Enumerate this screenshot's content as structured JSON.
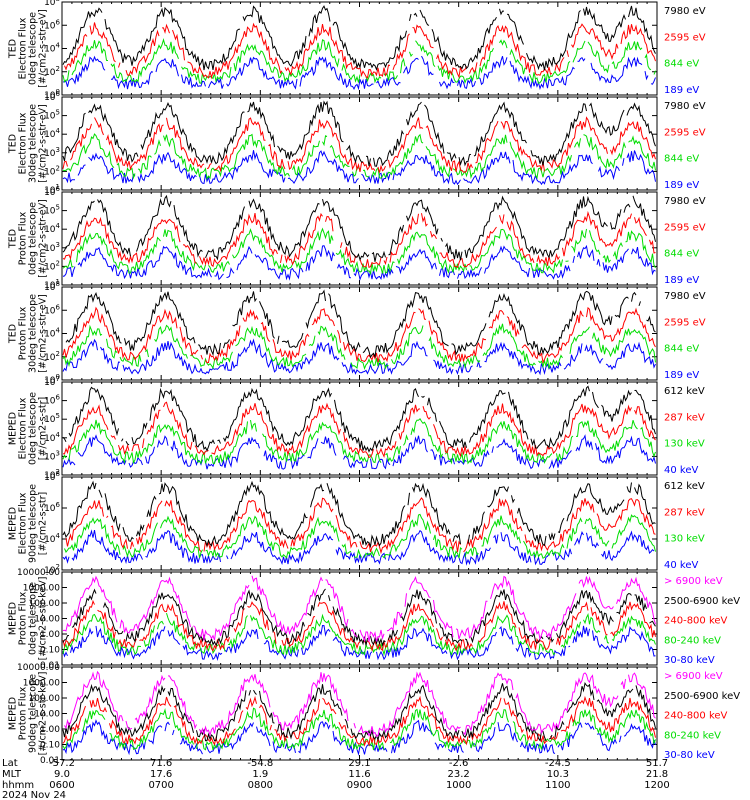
{
  "chart_data": [
    {
      "type": "line",
      "ylabel": [
        "TED",
        "Electron Flux",
        "0deg telescope",
        "[#/cm2-s-str-eV]"
      ],
      "yscale": "log",
      "yticks": [
        "10^0",
        "10^2",
        "10^4",
        "10^6",
        "10^8"
      ],
      "yrange_exp": [
        0,
        8
      ],
      "series": [
        {
          "name": "7980 eV",
          "color": "#000000"
        },
        {
          "name": "2595 eV",
          "color": "#ff0000"
        },
        {
          "name": "844 eV",
          "color": "#00dd00"
        },
        {
          "name": "189 eV",
          "color": "#0000ff"
        }
      ]
    },
    {
      "type": "line",
      "ylabel": [
        "TED",
        "Electron Flux",
        "30deg telescope",
        "[#/cm2-s-str-eV]"
      ],
      "yscale": "log",
      "yticks": [
        "10^1",
        "10^2",
        "10^3",
        "10^4",
        "10^5",
        "10^6"
      ],
      "yrange_exp": [
        1,
        6
      ],
      "series": [
        {
          "name": "7980 eV",
          "color": "#000000"
        },
        {
          "name": "2595 eV",
          "color": "#ff0000"
        },
        {
          "name": "844 eV",
          "color": "#00dd00"
        },
        {
          "name": "189 eV",
          "color": "#0000ff"
        }
      ]
    },
    {
      "type": "line",
      "ylabel": [
        "TED",
        "Proton Flux",
        "0deg telescope",
        "[#/cm2-s-str-eV]"
      ],
      "yscale": "log",
      "yticks": [
        "10^1",
        "10^2",
        "10^3",
        "10^4",
        "10^5",
        "10^6"
      ],
      "yrange_exp": [
        1,
        6
      ],
      "series": [
        {
          "name": "7980 eV",
          "color": "#000000"
        },
        {
          "name": "2595 eV",
          "color": "#ff0000"
        },
        {
          "name": "844 eV",
          "color": "#00dd00"
        },
        {
          "name": "189 eV",
          "color": "#0000ff"
        }
      ]
    },
    {
      "type": "line",
      "ylabel": [
        "TED",
        "Proton Flux",
        "30deg telescope",
        "[#/cm2-s-str-eV]"
      ],
      "yscale": "log",
      "yticks": [
        "10^0",
        "10^2",
        "10^4",
        "10^6",
        "10^8"
      ],
      "yrange_exp": [
        0,
        8
      ],
      "series": [
        {
          "name": "7980 eV",
          "color": "#000000"
        },
        {
          "name": "2595 eV",
          "color": "#ff0000"
        },
        {
          "name": "844 eV",
          "color": "#00dd00"
        },
        {
          "name": "189 eV",
          "color": "#0000ff"
        }
      ]
    },
    {
      "type": "line",
      "ylabel": [
        "MEPED",
        "Electron Flux",
        "0deg telescope",
        "[#/cm2-s-str]"
      ],
      "yscale": "log",
      "yticks": [
        "10^2",
        "10^3",
        "10^4",
        "10^5",
        "10^6",
        "10^7"
      ],
      "yrange_exp": [
        2,
        7
      ],
      "series": [
        {
          "name": "612 keV",
          "color": "#000000"
        },
        {
          "name": "287 keV",
          "color": "#ff0000"
        },
        {
          "name": "130 keV",
          "color": "#00dd00"
        },
        {
          "name": "40 keV",
          "color": "#0000ff"
        }
      ]
    },
    {
      "type": "line",
      "ylabel": [
        "MEPED",
        "Electron Flux",
        "90deg telescope",
        "[#/cm2-s-str]"
      ],
      "yscale": "log",
      "yticks": [
        "10^2",
        "10^4",
        "10^6",
        "10^8"
      ],
      "yrange_exp": [
        2,
        8
      ],
      "series": [
        {
          "name": "612 keV",
          "color": "#000000"
        },
        {
          "name": "287 keV",
          "color": "#ff0000"
        },
        {
          "name": "130 keV",
          "color": "#00dd00"
        },
        {
          "name": "40 keV",
          "color": "#0000ff"
        }
      ]
    },
    {
      "type": "line",
      "ylabel": [
        "MEPED",
        "Proton Flux",
        "0deg telescope",
        "[#/cm2-s-str-keV]"
      ],
      "yscale": "log",
      "yticks": [
        "0.01",
        "0.10",
        "1.00",
        "10.00",
        "100.00",
        "1000.00",
        "10000.00"
      ],
      "yrange_exp": [
        -2,
        4
      ],
      "series": [
        {
          "name": "> 6900 keV",
          "color": "#ff00ff"
        },
        {
          "name": "2500-6900 keV",
          "color": "#000000"
        },
        {
          "name": "240-800 keV",
          "color": "#ff0000"
        },
        {
          "name": "80-240 keV",
          "color": "#00dd00"
        },
        {
          "name": "30-80 keV",
          "color": "#0000ff"
        }
      ]
    },
    {
      "type": "line",
      "ylabel": [
        "MEPED",
        "Proton Flux",
        "90deg telescope",
        "[#/cm2-s-str-keV]"
      ],
      "yscale": "log",
      "yticks": [
        "0.01",
        "0.10",
        "1.00",
        "10.00",
        "100.00",
        "1000.00",
        "10000.00"
      ],
      "yrange_exp": [
        -2,
        4
      ],
      "series": [
        {
          "name": "> 6900 keV",
          "color": "#ff00ff"
        },
        {
          "name": "2500-6900 keV",
          "color": "#000000"
        },
        {
          "name": "240-800 keV",
          "color": "#ff0000"
        },
        {
          "name": "80-240 keV",
          "color": "#00dd00"
        },
        {
          "name": "30-80 keV",
          "color": "#0000ff"
        }
      ]
    }
  ],
  "footer": {
    "row_labels": [
      "Lat",
      "MLT",
      "hhmm",
      "2024 Nov 24"
    ],
    "lat": [
      "-57.2",
      "71.6",
      "-54.8",
      "29.1",
      "-2.6",
      "-24.5",
      "51.7"
    ],
    "mlt": [
      "9.0",
      "17.6",
      "1.9",
      "11.6",
      "23.2",
      "10.3",
      "21.8"
    ],
    "hhmm": [
      "0600",
      "0700",
      "0800",
      "0900",
      "1000",
      "1100",
      "1200"
    ]
  }
}
